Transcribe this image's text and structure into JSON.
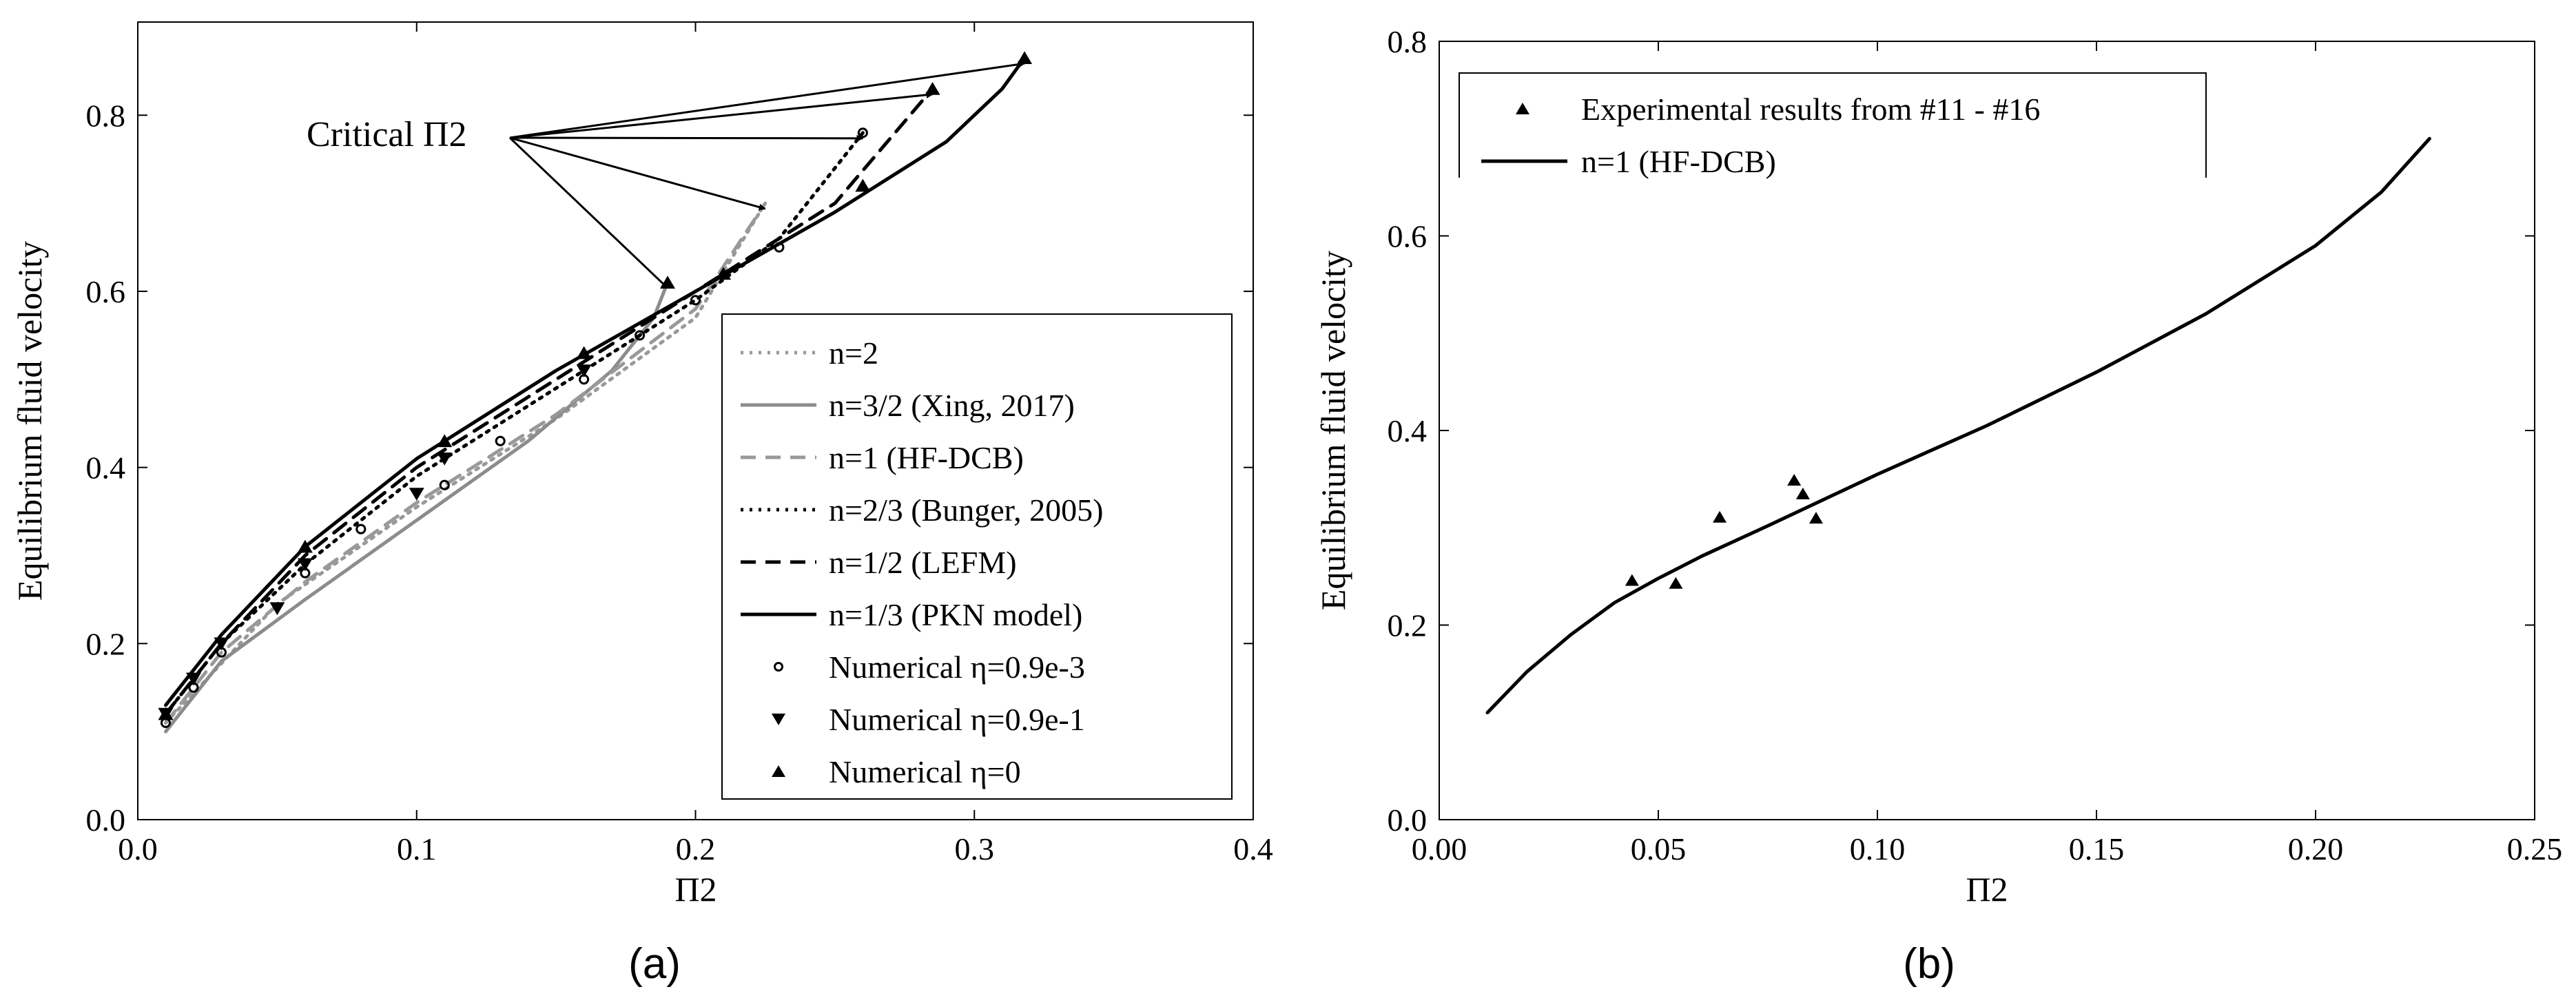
{
  "chart_data": [
    {
      "type": "line",
      "panel_label": "(a)",
      "xlabel": "Π2",
      "ylabel": "Equilibrium fluid velocity",
      "xlim": [
        0.0,
        0.4
      ],
      "ylim": [
        0.0,
        0.88
      ],
      "xticks": [
        0.0,
        0.1,
        0.2,
        0.3,
        0.4
      ],
      "xtick_labels": [
        "0.0",
        "0.1",
        "0.2",
        "0.3",
        "0.4"
      ],
      "yticks": [
        0.0,
        0.2,
        0.4,
        0.6,
        0.8
      ],
      "ytick_labels": [
        "0.0",
        "0.2",
        "0.4",
        "0.6",
        "0.8"
      ],
      "grid": false,
      "legend_position": "bottom-right",
      "annotation": {
        "text": "Critical Π2"
      },
      "series": [
        {
          "name": "n=2",
          "style": "dotted",
          "color": "#999999",
          "x": [
            0.01,
            0.05,
            0.1,
            0.15,
            0.2,
            0.225
          ],
          "y": [
            0.11,
            0.245,
            0.355,
            0.455,
            0.57,
            0.7
          ]
        },
        {
          "name": "n=3/2 (Xing, 2017)",
          "style": "solid",
          "color": "#8c8c8c",
          "x": [
            0.01,
            0.03,
            0.06,
            0.1,
            0.14,
            0.17,
            0.185,
            0.19
          ],
          "y": [
            0.1,
            0.18,
            0.25,
            0.34,
            0.43,
            0.51,
            0.57,
            0.61
          ]
        },
        {
          "name": "n=1 (HF-DCB)",
          "style": "dashed",
          "color": "#999999",
          "x": [
            0.01,
            0.03,
            0.06,
            0.1,
            0.15,
            0.2,
            0.225
          ],
          "y": [
            0.11,
            0.19,
            0.27,
            0.36,
            0.46,
            0.58,
            0.7
          ]
        },
        {
          "name": "n=2/3 (Bunger, 2005)",
          "style": "dotted",
          "color": "#000000",
          "x": [
            0.01,
            0.03,
            0.06,
            0.1,
            0.15,
            0.2,
            0.23,
            0.26
          ],
          "y": [
            0.12,
            0.2,
            0.29,
            0.39,
            0.49,
            0.59,
            0.66,
            0.78
          ]
        },
        {
          "name": "n=1/2 (LEFM)",
          "style": "dashed",
          "color": "#000000",
          "x": [
            0.01,
            0.03,
            0.06,
            0.1,
            0.15,
            0.2,
            0.25,
            0.285
          ],
          "y": [
            0.12,
            0.2,
            0.3,
            0.4,
            0.5,
            0.6,
            0.7,
            0.83
          ]
        },
        {
          "name": "n=1/3 (PKN model)",
          "style": "solid",
          "color": "#000000",
          "x": [
            0.01,
            0.03,
            0.06,
            0.1,
            0.15,
            0.2,
            0.25,
            0.29,
            0.31,
            0.318
          ],
          "y": [
            0.13,
            0.21,
            0.31,
            0.41,
            0.51,
            0.6,
            0.69,
            0.77,
            0.83,
            0.865
          ]
        },
        {
          "name": "Numerical η=0.9e-3",
          "style": "marker",
          "marker": "circle",
          "color": "#000000",
          "x": [
            0.01,
            0.02,
            0.03,
            0.06,
            0.08,
            0.11,
            0.13,
            0.16,
            0.18,
            0.2,
            0.23,
            0.26
          ],
          "y": [
            0.11,
            0.15,
            0.19,
            0.28,
            0.33,
            0.38,
            0.43,
            0.5,
            0.55,
            0.59,
            0.65,
            0.78
          ]
        },
        {
          "name": "Numerical η=0.9e-1",
          "style": "marker",
          "marker": "triangle-down",
          "color": "#000000",
          "x": [
            0.01,
            0.02,
            0.03,
            0.05,
            0.06,
            0.1,
            0.11,
            0.16
          ],
          "y": [
            0.12,
            0.16,
            0.2,
            0.24,
            0.29,
            0.37,
            0.41,
            0.51
          ]
        },
        {
          "name": "Numerical η=0",
          "style": "marker",
          "marker": "triangle-up",
          "color": "#000000",
          "x": [
            0.01,
            0.06,
            0.11,
            0.16,
            0.19,
            0.21,
            0.26,
            0.285,
            0.318
          ],
          "y": [
            0.12,
            0.31,
            0.43,
            0.53,
            0.61,
            0.62,
            0.72,
            0.83,
            0.865
          ]
        }
      ]
    },
    {
      "type": "line",
      "panel_label": "(b)",
      "xlabel": "Π2",
      "ylabel": "Equilibrium fluid velocity",
      "xlim": [
        0.0,
        0.25
      ],
      "ylim": [
        0.0,
        0.8
      ],
      "xticks": [
        0.0,
        0.05,
        0.1,
        0.15,
        0.2,
        0.25
      ],
      "xtick_labels": [
        "0.00",
        "0.05",
        "0.10",
        "0.15",
        "0.20",
        "0.25"
      ],
      "yticks": [
        0.0,
        0.2,
        0.4,
        0.6,
        0.8
      ],
      "ytick_labels": [
        "0.0",
        "0.2",
        "0.4",
        "0.6",
        "0.8"
      ],
      "grid": false,
      "legend_position": "top-left",
      "series": [
        {
          "name": "Experimental results from #11 - #16",
          "style": "marker",
          "marker": "triangle-up",
          "color": "#000000",
          "x": [
            0.044,
            0.054,
            0.064,
            0.081,
            0.083,
            0.086
          ],
          "y": [
            0.246,
            0.243,
            0.311,
            0.349,
            0.335,
            0.31
          ]
        },
        {
          "name": "n=1 (HF-DCB)",
          "style": "solid",
          "color": "#000000",
          "x": [
            0.011,
            0.02,
            0.03,
            0.04,
            0.05,
            0.06,
            0.075,
            0.1,
            0.125,
            0.15,
            0.175,
            0.2,
            0.215,
            0.226
          ],
          "y": [
            0.11,
            0.152,
            0.19,
            0.223,
            0.248,
            0.271,
            0.302,
            0.355,
            0.405,
            0.46,
            0.52,
            0.59,
            0.645,
            0.7
          ]
        }
      ]
    }
  ]
}
